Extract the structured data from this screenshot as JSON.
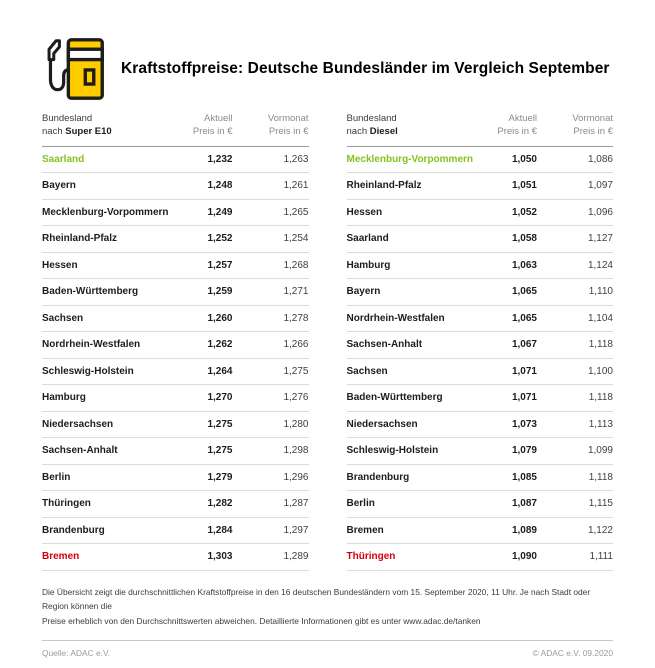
{
  "header": {
    "icon": "fuel-pump-icon",
    "title": "Kraftstoffpreise: Deutsche Bundesländer im Vergleich September"
  },
  "colors": {
    "brand_yellow": "#FFCC00",
    "outline_black": "#1d1d1b",
    "cheapest_green": "#86c11e",
    "most_expensive_red": "#d2000f"
  },
  "chart_data": [
    {
      "type": "table",
      "fuel": "Super E10",
      "header": {
        "col_state_line1": "Bundesland",
        "col_state_nach": "nach",
        "fuel": "Super E10",
        "col_aktuell_line1": "Aktuell",
        "col_vormonat_line1": "Vormonat",
        "col_preis": "Preis in €"
      },
      "rows": [
        {
          "state": "Saarland",
          "aktuell": "1,232",
          "vormonat": "1,263",
          "color": "green"
        },
        {
          "state": "Bayern",
          "aktuell": "1,248",
          "vormonat": "1,261",
          "color": null
        },
        {
          "state": "Mecklenburg-Vorpommern",
          "aktuell": "1,249",
          "vormonat": "1,265",
          "color": null
        },
        {
          "state": "Rheinland-Pfalz",
          "aktuell": "1,252",
          "vormonat": "1,254",
          "color": null
        },
        {
          "state": "Hessen",
          "aktuell": "1,257",
          "vormonat": "1,268",
          "color": null
        },
        {
          "state": "Baden-Württemberg",
          "aktuell": "1,259",
          "vormonat": "1,271",
          "color": null
        },
        {
          "state": "Sachsen",
          "aktuell": "1,260",
          "vormonat": "1,278",
          "color": null
        },
        {
          "state": "Nordrhein-Westfalen",
          "aktuell": "1,262",
          "vormonat": "1,266",
          "color": null
        },
        {
          "state": "Schleswig-Holstein",
          "aktuell": "1,264",
          "vormonat": "1,275",
          "color": null
        },
        {
          "state": "Hamburg",
          "aktuell": "1,270",
          "vormonat": "1,276",
          "color": null
        },
        {
          "state": "Niedersachsen",
          "aktuell": "1,275",
          "vormonat": "1,280",
          "color": null
        },
        {
          "state": "Sachsen-Anhalt",
          "aktuell": "1,275",
          "vormonat": "1,298",
          "color": null
        },
        {
          "state": "Berlin",
          "aktuell": "1,279",
          "vormonat": "1,296",
          "color": null
        },
        {
          "state": "Thüringen",
          "aktuell": "1,282",
          "vormonat": "1,287",
          "color": null
        },
        {
          "state": "Brandenburg",
          "aktuell": "1,284",
          "vormonat": "1,297",
          "color": null
        },
        {
          "state": "Bremen",
          "aktuell": "1,303",
          "vormonat": "1,289",
          "color": "red"
        }
      ]
    },
    {
      "type": "table",
      "fuel": "Diesel",
      "header": {
        "col_state_line1": "Bundesland",
        "col_state_nach": "nach",
        "fuel": "Diesel",
        "col_aktuell_line1": "Aktuell",
        "col_vormonat_line1": "Vormonat",
        "col_preis": "Preis in €"
      },
      "rows": [
        {
          "state": "Mecklenburg-Vorpommern",
          "aktuell": "1,050",
          "vormonat": "1,086",
          "color": "green"
        },
        {
          "state": "Rheinland-Pfalz",
          "aktuell": "1,051",
          "vormonat": "1,097",
          "color": null
        },
        {
          "state": "Hessen",
          "aktuell": "1,052",
          "vormonat": "1,096",
          "color": null
        },
        {
          "state": "Saarland",
          "aktuell": "1,058",
          "vormonat": "1,127",
          "color": null
        },
        {
          "state": "Hamburg",
          "aktuell": "1,063",
          "vormonat": "1,124",
          "color": null
        },
        {
          "state": "Bayern",
          "aktuell": "1,065",
          "vormonat": "1,110",
          "color": null
        },
        {
          "state": "Nordrhein-Westfalen",
          "aktuell": "1,065",
          "vormonat": "1,104",
          "color": null
        },
        {
          "state": "Sachsen-Anhalt",
          "aktuell": "1,067",
          "vormonat": "1,118",
          "color": null
        },
        {
          "state": "Sachsen",
          "aktuell": "1,071",
          "vormonat": "1,100",
          "color": null
        },
        {
          "state": "Baden-Württemberg",
          "aktuell": "1,071",
          "vormonat": "1,118",
          "color": null
        },
        {
          "state": "Niedersachsen",
          "aktuell": "1,073",
          "vormonat": "1,113",
          "color": null
        },
        {
          "state": "Schleswig-Holstein",
          "aktuell": "1,079",
          "vormonat": "1,099",
          "color": null
        },
        {
          "state": "Brandenburg",
          "aktuell": "1,085",
          "vormonat": "1,118",
          "color": null
        },
        {
          "state": "Berlin",
          "aktuell": "1,087",
          "vormonat": "1,115",
          "color": null
        },
        {
          "state": "Bremen",
          "aktuell": "1,089",
          "vormonat": "1,122",
          "color": null
        },
        {
          "state": "Thüringen",
          "aktuell": "1,090",
          "vormonat": "1,111",
          "color": "red"
        }
      ]
    }
  ],
  "footnote": {
    "line1": "Die Übersicht zeigt die durchschnittlichen Kraftstoffpreise in den 16 deutschen Bundesländern vom 15. September 2020, 11 Uhr.  Je nach Stadt oder Region können die",
    "line2": "Preise erheblich von den Durchschnittswerten abweichen. Detaillierte Informationen gibt es unter www.adac.de/tanken"
  },
  "footer": {
    "source": "Quelle: ADAC e.V.",
    "copyright": "© ADAC e.V. 09.2020"
  }
}
